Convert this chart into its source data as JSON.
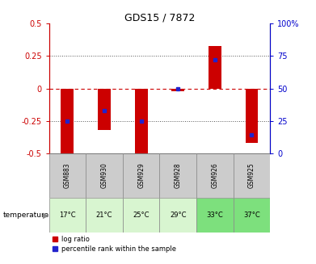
{
  "title": "GDS15 / 7872",
  "samples": [
    "GSM883",
    "GSM930",
    "GSM929",
    "GSM928",
    "GSM926",
    "GSM925"
  ],
  "temperatures": [
    "17°C",
    "21°C",
    "25°C",
    "29°C",
    "33°C",
    "37°C"
  ],
  "log_ratios": [
    -0.5,
    -0.32,
    -0.5,
    -0.02,
    0.33,
    -0.42
  ],
  "percentile_ranks": [
    25,
    33,
    25,
    50,
    72,
    14
  ],
  "ylim": [
    -0.5,
    0.5
  ],
  "yticks_left": [
    -0.5,
    -0.25,
    0,
    0.25,
    0.5
  ],
  "yticks_right": [
    0,
    25,
    50,
    75,
    100
  ],
  "bar_color": "#cc0000",
  "dot_color": "#2222cc",
  "zero_line_color": "#cc0000",
  "title_color": "#000000",
  "left_tick_color": "#cc0000",
  "right_tick_color": "#0000cc",
  "temp_bg_colors": [
    "#d8f5d0",
    "#d8f5d0",
    "#d8f5d0",
    "#d8f5d0",
    "#7de07d",
    "#7de07d"
  ],
  "sample_bg_color": "#cccccc",
  "legend_red": "log ratio",
  "legend_blue": "percentile rank within the sample",
  "bar_width": 0.35
}
